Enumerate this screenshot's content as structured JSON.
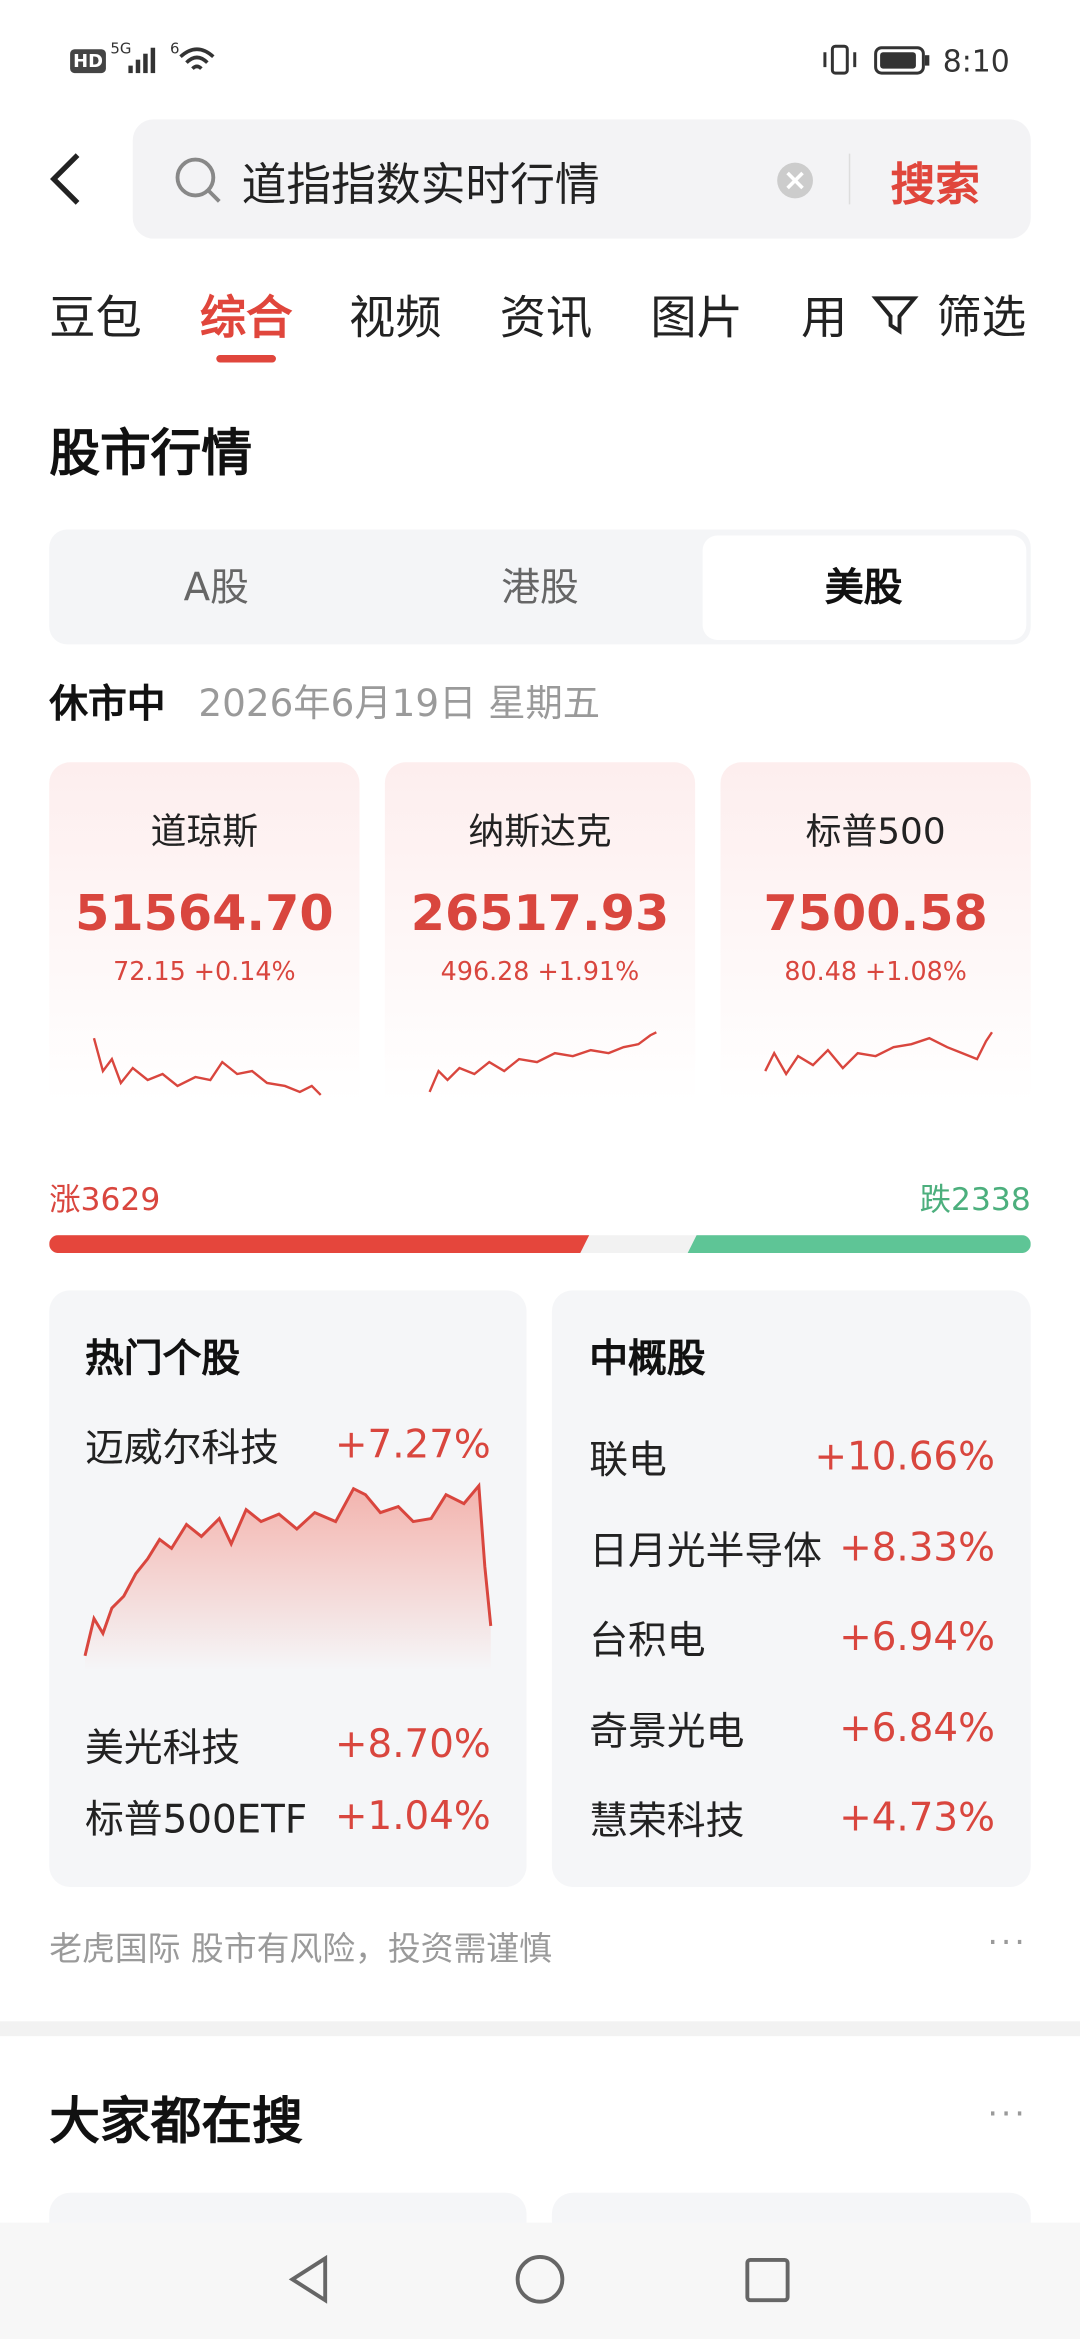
{
  "status_bar": {
    "hd": "HD",
    "network": "5G",
    "wifi": "6",
    "time": "8:10"
  },
  "search": {
    "query": "道指指数实时行情",
    "button": "搜索"
  },
  "tabs": [
    "豆包",
    "综合",
    "视频",
    "资讯",
    "图片",
    "用"
  ],
  "filter": "筛选",
  "market": {
    "title": "股市行情",
    "segments": [
      "A股",
      "港股",
      "美股"
    ],
    "status": "休市中",
    "date": "2026年6月19日 星期五",
    "indices": [
      {
        "name": "道琼斯",
        "value": "51564.70",
        "change": "72.15 +0.14%"
      },
      {
        "name": "纳斯达克",
        "value": "26517.93",
        "change": "496.28 +1.91%"
      },
      {
        "name": "标普500",
        "value": "7500.58",
        "change": "80.48 +1.08%"
      }
    ],
    "rise": "涨3629",
    "fall": "跌2338",
    "hot": {
      "title": "热门个股",
      "top": {
        "name": "迈威尔科技",
        "change": "+7.27%"
      },
      "rows": [
        {
          "name": "美光科技",
          "change": "+8.70%"
        },
        {
          "name": "标普500ETF",
          "change": "+1.04%"
        }
      ]
    },
    "china": {
      "title": "中概股",
      "rows": [
        {
          "name": "联电",
          "change": "+10.66%"
        },
        {
          "name": "日月光半导体",
          "change": "+8.33%"
        },
        {
          "name": "台积电",
          "change": "+6.94%"
        },
        {
          "name": "奇景光电",
          "change": "+6.84%"
        },
        {
          "name": "慧荣科技",
          "change": "+4.73%"
        }
      ]
    },
    "footer": "老虎国际 股市有风险，投资需谨慎"
  },
  "trending": {
    "title": "大家都在搜"
  }
}
